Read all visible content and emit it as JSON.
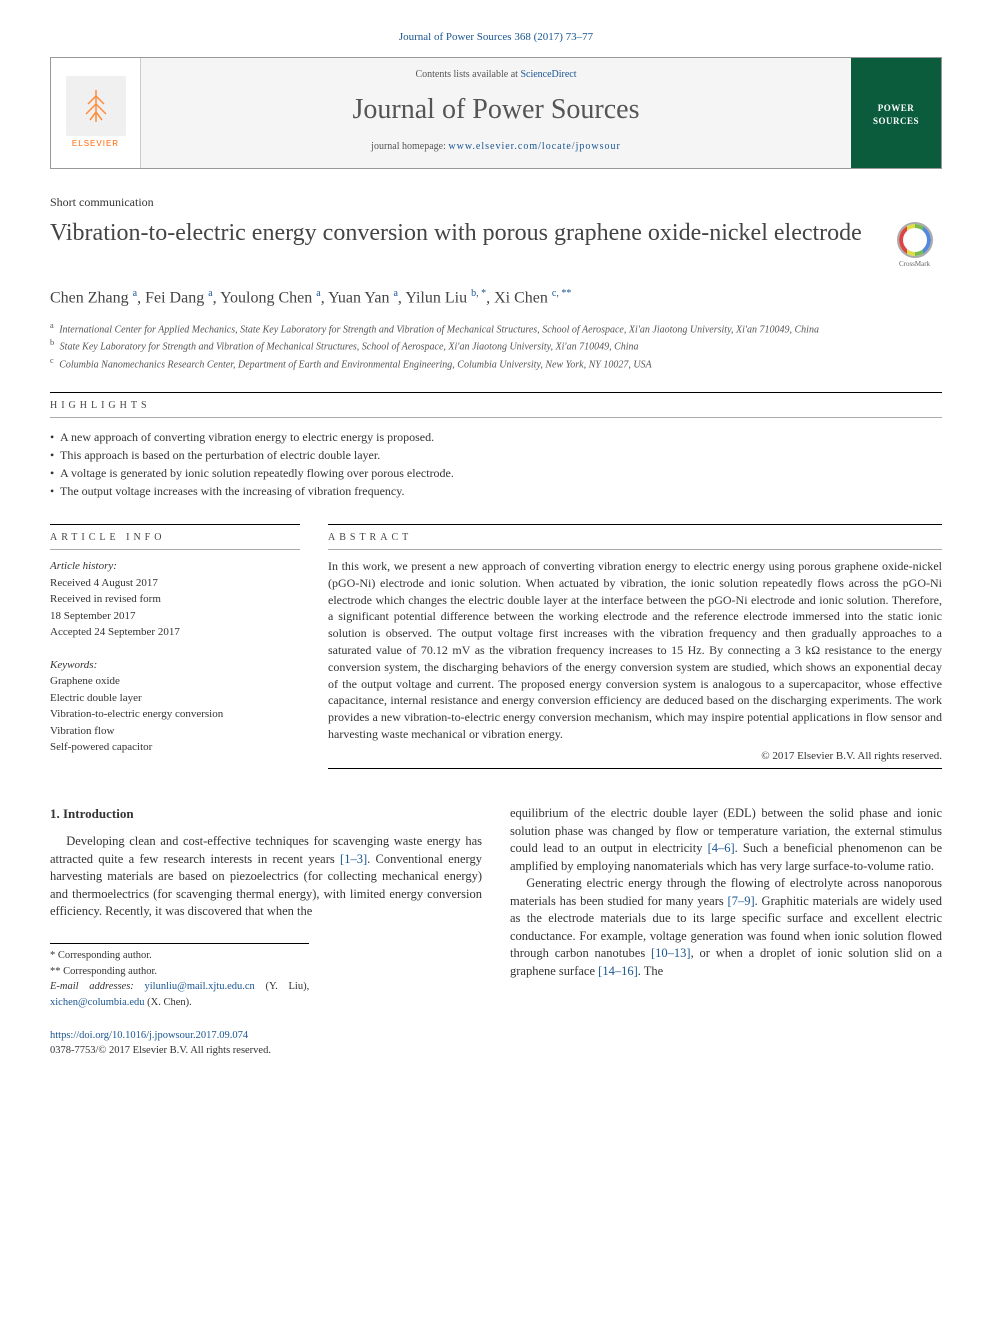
{
  "journal_ref": "Journal of Power Sources 368 (2017) 73–77",
  "header": {
    "contents_prefix": "Contents lists available at ",
    "contents_link": "ScienceDirect",
    "journal_name": "Journal of Power Sources",
    "homepage_prefix": "journal homepage: ",
    "homepage_url": "www.elsevier.com/locate/jpowsour",
    "publisher": "ELSEVIER",
    "cover_label": "POWER SOURCES"
  },
  "article_type": "Short communication",
  "title": "Vibration-to-electric energy conversion with porous graphene oxide-nickel electrode",
  "crossmark": "CrossMark",
  "authors_html": "Chen Zhang <sup>a</sup>, Fei Dang <sup>a</sup>, Youlong Chen <sup>a</sup>, Yuan Yan <sup>a</sup>, Yilun Liu <sup>b, *</sup>, Xi Chen <sup>c, **</sup>",
  "affiliations": [
    {
      "sup": "a",
      "text": "International Center for Applied Mechanics, State Key Laboratory for Strength and Vibration of Mechanical Structures, School of Aerospace, Xi'an Jiaotong University, Xi'an 710049, China"
    },
    {
      "sup": "b",
      "text": "State Key Laboratory for Strength and Vibration of Mechanical Structures, School of Aerospace, Xi'an Jiaotong University, Xi'an 710049, China"
    },
    {
      "sup": "c",
      "text": "Columbia Nanomechanics Research Center, Department of Earth and Environmental Engineering, Columbia University, New York, NY 10027, USA"
    }
  ],
  "highlights_heading": "highlights",
  "highlights": [
    "A new approach of converting vibration energy to electric energy is proposed.",
    "This approach is based on the perturbation of electric double layer.",
    "A voltage is generated by ionic solution repeatedly flowing over porous electrode.",
    "The output voltage increases with the increasing of vibration frequency."
  ],
  "article_info_heading": "article info",
  "history": {
    "label": "Article history:",
    "received": "Received 4 August 2017",
    "revised": "Received in revised form",
    "revised_date": "18 September 2017",
    "accepted": "Accepted 24 September 2017"
  },
  "keywords_label": "Keywords:",
  "keywords": [
    "Graphene oxide",
    "Electric double layer",
    "Vibration-to-electric energy conversion",
    "Vibration flow",
    "Self-powered capacitor"
  ],
  "abstract_heading": "abstract",
  "abstract": "In this work, we present a new approach of converting vibration energy to electric energy using porous graphene oxide-nickel (pGO-Ni) electrode and ionic solution. When actuated by vibration, the ionic solution repeatedly flows across the pGO-Ni electrode which changes the electric double layer at the interface between the pGO-Ni electrode and ionic solution. Therefore, a significant potential difference between the working electrode and the reference electrode immersed into the static ionic solution is observed. The output voltage first increases with the vibration frequency and then gradually approaches to a saturated value of 70.12 mV as the vibration frequency increases to 15 Hz. By connecting a 3 kΩ resistance to the energy conversion system, the discharging behaviors of the energy conversion system are studied, which shows an exponential decay of the output voltage and current. The proposed energy conversion system is analogous to a supercapacitor, whose effective capacitance, internal resistance and energy conversion efficiency are deduced based on the discharging experiments. The work provides a new vibration-to-electric energy conversion mechanism, which may inspire potential applications in flow sensor and harvesting waste mechanical or vibration energy.",
  "copyright": "© 2017 Elsevier B.V. All rights reserved.",
  "intro_heading": "1. Introduction",
  "intro_p1_pre": "Developing clean and cost-effective techniques for scavenging waste energy has attracted quite a few research interests in recent years ",
  "intro_p1_ref1": "[1–3]",
  "intro_p1_post": ". Conventional energy harvesting materials are based on piezoelectrics (for collecting mechanical energy) and thermoelectrics (for scavenging thermal energy), with limited energy conversion efficiency. Recently, it was discovered that when the",
  "intro_p2_pre": "equilibrium of the electric double layer (EDL) between the solid phase and ionic solution phase was changed by flow or temperature variation, the external stimulus could lead to an output in electricity ",
  "intro_p2_ref1": "[4–6]",
  "intro_p2_post": ". Such a beneficial phenomenon can be amplified by employing nanomaterials which has very large surface-to-volume ratio.",
  "intro_p3_pre": "Generating electric energy through the flowing of electrolyte across nanoporous materials has been studied for many years ",
  "intro_p3_ref1": "[7–9]",
  "intro_p3_mid1": ". Graphitic materials are widely used as the electrode materials due to its large specific surface and excellent electric conductance. For example, voltage generation was found when ionic solution flowed through carbon nanotubes ",
  "intro_p3_ref2": "[10–13]",
  "intro_p3_mid2": ", or when a droplet of ionic solution slid on a graphene surface ",
  "intro_p3_ref3": "[14–16]",
  "intro_p3_post": ". The",
  "footnotes": {
    "corr1": "* Corresponding author.",
    "corr2": "** Corresponding author.",
    "email_label": "E-mail addresses:",
    "email1": "yilunliu@mail.xjtu.edu.cn",
    "email1_name": "(Y. Liu),",
    "email2": "xichen@columbia.edu",
    "email2_name": "(X. Chen)."
  },
  "doi": {
    "url": "https://doi.org/10.1016/j.jpowsour.2017.09.074",
    "issn_line": "0378-7753/© 2017 Elsevier B.V. All rights reserved."
  },
  "colors": {
    "link": "#1a5690",
    "elsevier_orange": "#ff6600",
    "cover_green": "#0a5c3c"
  }
}
